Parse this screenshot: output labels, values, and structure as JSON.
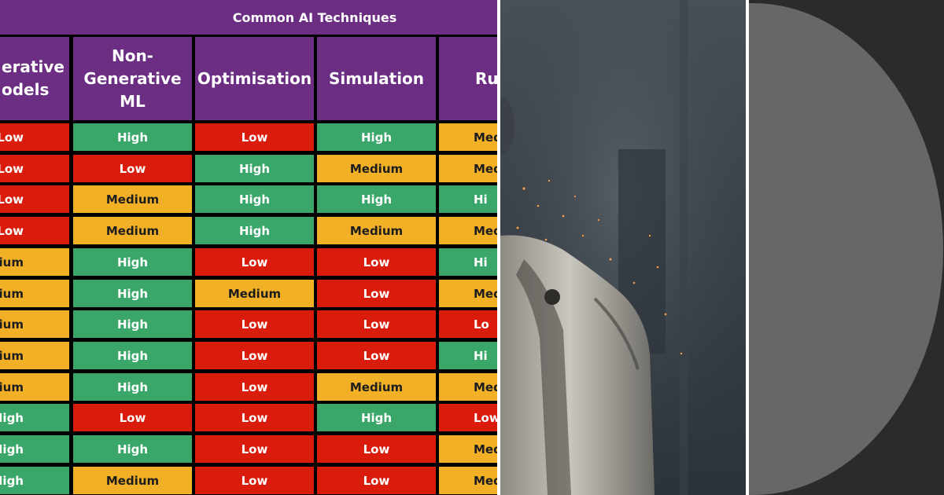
{
  "table": {
    "title": "Common AI Techniques",
    "columns": [
      {
        "header": "erative\nodels",
        "align": "left"
      },
      {
        "header": "Non-\nGenerative\nML",
        "align": "center"
      },
      {
        "header": "Optimisation",
        "align": "center"
      },
      {
        "header": "Simulation",
        "align": "center"
      },
      {
        "header": "Ru",
        "align": "left"
      }
    ],
    "rows": [
      [
        {
          "text": "Low",
          "level": "Low"
        },
        {
          "text": "High",
          "level": "High"
        },
        {
          "text": "Low",
          "level": "Low"
        },
        {
          "text": "High",
          "level": "High"
        },
        {
          "text": "Med",
          "level": "Medium"
        }
      ],
      [
        {
          "text": "Low",
          "level": "Low"
        },
        {
          "text": "Low",
          "level": "Low"
        },
        {
          "text": "High",
          "level": "High"
        },
        {
          "text": "Medium",
          "level": "Medium"
        },
        {
          "text": "Med",
          "level": "Medium"
        }
      ],
      [
        {
          "text": "Low",
          "level": "Low"
        },
        {
          "text": "Medium",
          "level": "Medium"
        },
        {
          "text": "High",
          "level": "High"
        },
        {
          "text": "High",
          "level": "High"
        },
        {
          "text": "Hi",
          "level": "High"
        }
      ],
      [
        {
          "text": "Low",
          "level": "Low"
        },
        {
          "text": "Medium",
          "level": "Medium"
        },
        {
          "text": "High",
          "level": "High"
        },
        {
          "text": "Medium",
          "level": "Medium"
        },
        {
          "text": "Med",
          "level": "Medium"
        }
      ],
      [
        {
          "text": "edium",
          "level": "Medium"
        },
        {
          "text": "High",
          "level": "High"
        },
        {
          "text": "Low",
          "level": "Low"
        },
        {
          "text": "Low",
          "level": "Low"
        },
        {
          "text": "Hi",
          "level": "High"
        }
      ],
      [
        {
          "text": "edium",
          "level": "Medium"
        },
        {
          "text": "High",
          "level": "High"
        },
        {
          "text": "Medium",
          "level": "Medium"
        },
        {
          "text": "Low",
          "level": "Low"
        },
        {
          "text": "Med",
          "level": "Medium"
        }
      ],
      [
        {
          "text": "edium",
          "level": "Medium"
        },
        {
          "text": "High",
          "level": "High"
        },
        {
          "text": "Low",
          "level": "Low"
        },
        {
          "text": "Low",
          "level": "Low"
        },
        {
          "text": "Lo",
          "level": "Low"
        }
      ],
      [
        {
          "text": "edium",
          "level": "Medium"
        },
        {
          "text": "High",
          "level": "High"
        },
        {
          "text": "Low",
          "level": "Low"
        },
        {
          "text": "Low",
          "level": "Low"
        },
        {
          "text": "Hi",
          "level": "High"
        }
      ],
      [
        {
          "text": "edium",
          "level": "Medium"
        },
        {
          "text": "High",
          "level": "High"
        },
        {
          "text": "Low",
          "level": "Low"
        },
        {
          "text": "Medium",
          "level": "Medium"
        },
        {
          "text": "Med",
          "level": "Medium"
        }
      ],
      [
        {
          "text": "High",
          "level": "High"
        },
        {
          "text": "Low",
          "level": "Low"
        },
        {
          "text": "Low",
          "level": "Low"
        },
        {
          "text": "High",
          "level": "High"
        },
        {
          "text": "Low",
          "level": "Low"
        }
      ],
      [
        {
          "text": "High",
          "level": "High"
        },
        {
          "text": "High",
          "level": "High"
        },
        {
          "text": "Low",
          "level": "Low"
        },
        {
          "text": "Low",
          "level": "Low"
        },
        {
          "text": "Med",
          "level": "Medium"
        }
      ],
      [
        {
          "text": "High",
          "level": "High"
        },
        {
          "text": "Medium",
          "level": "Medium"
        },
        {
          "text": "Low",
          "level": "Low"
        },
        {
          "text": "Low",
          "level": "Low"
        },
        {
          "text": "Med",
          "level": "Medium"
        }
      ]
    ]
  },
  "colors": {
    "header": "#6b2e82",
    "High": "#3aa66a",
    "Low": "#d91c0b",
    "Medium": "#f2b027",
    "circle": "#676767",
    "circle_bg": "#2b2b2b"
  },
  "icons": {
    "robot_photo": "robot-shoulder-photo",
    "circle_graphic": "grey-circle-graphic"
  }
}
